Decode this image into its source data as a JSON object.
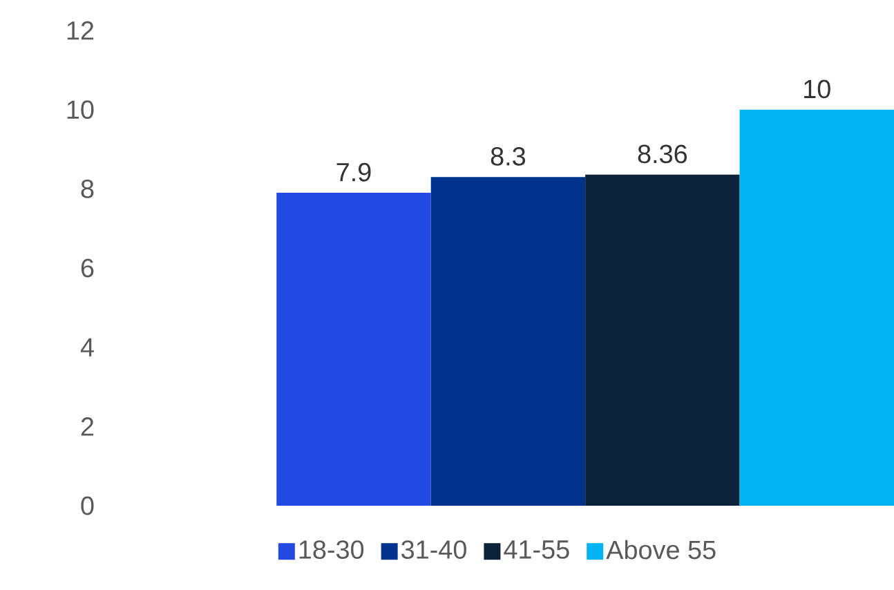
{
  "chart_data": {
    "type": "bar",
    "categories": [
      null
    ],
    "series": [
      {
        "name": "18-30",
        "color": "#2349e3",
        "values": [
          7.9
        ]
      },
      {
        "name": "31-40",
        "color": "#00338d",
        "values": [
          8.3
        ]
      },
      {
        "name": "41-55",
        "color": "#0c223a",
        "values": [
          8.36
        ]
      },
      {
        "name": "Above 55",
        "color": "#00b5f1",
        "values": [
          10
        ]
      }
    ],
    "ylim": [
      0,
      12
    ],
    "yticks": [
      0,
      2,
      4,
      6,
      8,
      10,
      12
    ],
    "data_labels": true,
    "legend": "bottom",
    "grid": false
  }
}
